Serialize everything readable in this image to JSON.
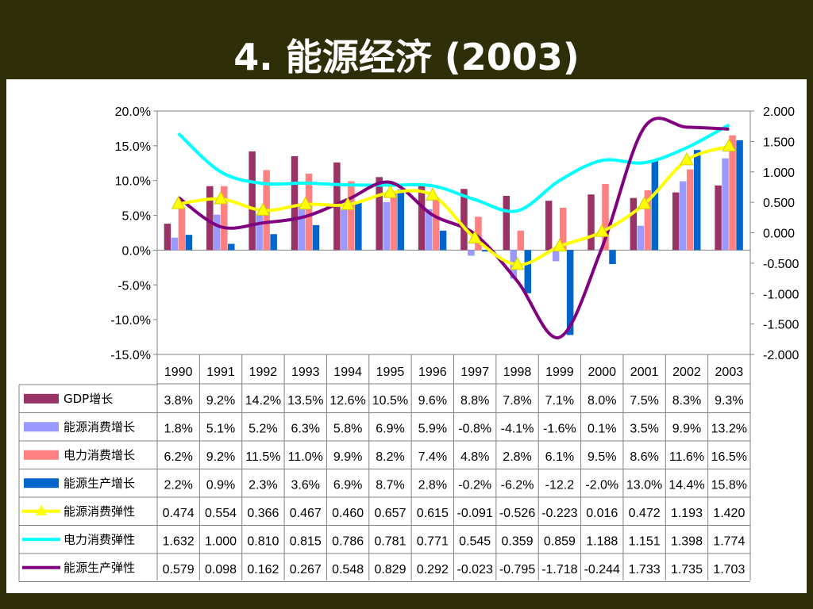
{
  "slide": {
    "title": "4. 能源经济 (2003)"
  },
  "chart_data": {
    "type": "bar",
    "title": "",
    "categories": [
      "1990",
      "1991",
      "1992",
      "1993",
      "1994",
      "1995",
      "1996",
      "1997",
      "1998",
      "1999",
      "2000",
      "2001",
      "2002",
      "2003"
    ],
    "y_left": {
      "range": [
        -15,
        20
      ],
      "ticks": [
        "20.0%",
        "15.0%",
        "10.0%",
        "5.0%",
        "0.0%",
        "-5.0%",
        "-10.0%",
        "-15.0%"
      ]
    },
    "y_right": {
      "range": [
        -2,
        2
      ],
      "ticks": [
        "2.000",
        "1.500",
        "1.000",
        "0.500",
        "0.000",
        "-0.500",
        "-1.000",
        "-1.500",
        "-2.000"
      ]
    },
    "grid": false,
    "legend_placement": "data-table-below",
    "series": [
      {
        "name": "GDP增长",
        "kind": "bar",
        "axis": "left",
        "color": "#993366",
        "values": [
          3.8,
          9.2,
          14.2,
          13.5,
          12.6,
          10.5,
          9.6,
          8.8,
          7.8,
          7.1,
          8.0,
          7.5,
          8.3,
          9.3
        ],
        "labels": [
          "3.8%",
          "9.2%",
          "14.2%",
          "13.5%",
          "12.6%",
          "10.5%",
          "9.6%",
          "8.8%",
          "7.8%",
          "7.1%",
          "8.0%",
          "7.5%",
          "8.3%",
          "9.3%"
        ]
      },
      {
        "name": "能源消费增长",
        "kind": "bar",
        "axis": "left",
        "color": "#9999ff",
        "values": [
          1.8,
          5.1,
          5.2,
          6.3,
          5.8,
          6.9,
          5.9,
          -0.8,
          -4.1,
          -1.6,
          0.1,
          3.5,
          9.9,
          13.2
        ],
        "labels": [
          "1.8%",
          "5.1%",
          "5.2%",
          "6.3%",
          "5.8%",
          "6.9%",
          "5.9%",
          "-0.8%",
          "-4.1%",
          "-1.6%",
          "0.1%",
          "3.5%",
          "9.9%",
          "13.2%"
        ]
      },
      {
        "name": "电力消费增长",
        "kind": "bar",
        "axis": "left",
        "color": "#ff8080",
        "values": [
          6.2,
          9.2,
          11.5,
          11.0,
          9.9,
          8.2,
          7.4,
          4.8,
          2.8,
          6.1,
          9.5,
          8.6,
          11.6,
          16.5
        ],
        "labels": [
          "6.2%",
          "9.2%",
          "11.5%",
          "11.0%",
          "9.9%",
          "8.2%",
          "7.4%",
          "4.8%",
          "2.8%",
          "6.1%",
          "9.5%",
          "8.6%",
          "11.6%",
          "16.5%"
        ]
      },
      {
        "name": "能源生产增长",
        "kind": "bar",
        "axis": "left",
        "color": "#0066cc",
        "values": [
          2.2,
          0.9,
          2.3,
          3.6,
          6.9,
          8.7,
          2.8,
          -0.2,
          -6.2,
          -12.2,
          -2.0,
          13.0,
          14.4,
          15.8
        ],
        "labels": [
          "2.2%",
          "0.9%",
          "2.3%",
          "3.6%",
          "6.9%",
          "8.7%",
          "2.8%",
          "-0.2%",
          "-6.2%",
          "-12.2",
          "-2.0%",
          "13.0%",
          "14.4%",
          "15.8%"
        ]
      },
      {
        "name": "能源消费弹性",
        "kind": "line",
        "axis": "right",
        "color": "#ffff00",
        "marker": "triangle",
        "values": [
          0.474,
          0.554,
          0.366,
          0.467,
          0.46,
          0.657,
          0.615,
          -0.091,
          -0.526,
          -0.223,
          0.016,
          0.472,
          1.193,
          1.42
        ],
        "labels": [
          "0.474",
          "0.554",
          "0.366",
          "0.467",
          "0.460",
          "0.657",
          "0.615",
          "-0.091",
          "-0.526",
          "-0.223",
          "0.016",
          "0.472",
          "1.193",
          "1.420"
        ]
      },
      {
        "name": "电力消费弹性",
        "kind": "line",
        "axis": "right",
        "color": "#00ffff",
        "marker": "none",
        "values": [
          1.632,
          1.0,
          0.81,
          0.815,
          0.786,
          0.781,
          0.771,
          0.545,
          0.359,
          0.859,
          1.188,
          1.151,
          1.398,
          1.774
        ],
        "labels": [
          "1.632",
          "1.000",
          "0.810",
          "0.815",
          "0.786",
          "0.781",
          "0.771",
          "0.545",
          "0.359",
          "0.859",
          "1.188",
          "1.151",
          "1.398",
          "1.774"
        ]
      },
      {
        "name": "能源生产弹性",
        "kind": "line",
        "axis": "right",
        "color": "#800080",
        "marker": "none",
        "values": [
          0.579,
          0.098,
          0.162,
          0.267,
          0.548,
          0.829,
          0.292,
          -0.023,
          -0.795,
          -1.718,
          -0.244,
          1.733,
          1.735,
          1.703
        ],
        "labels": [
          "0.579",
          "0.098",
          "0.162",
          "0.267",
          "0.548",
          "0.829",
          "0.292",
          "-0.023",
          "-0.795",
          "-1.718",
          "-0.244",
          "1.733",
          "1.735",
          "1.703"
        ]
      }
    ]
  }
}
